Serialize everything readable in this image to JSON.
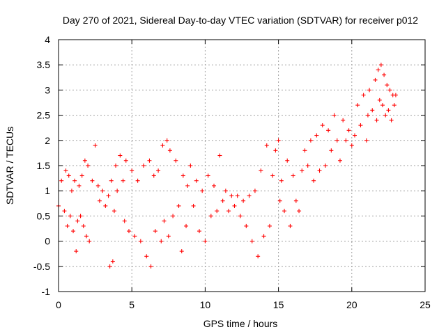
{
  "chart_data": {
    "type": "scatter",
    "title": "Day 270 of 2021, Sidereal Day-to-day VTEC variation (SDTVAR) for receiver p012",
    "xlabel": "GPS time / hours",
    "ylabel": "SDTVAR / TECUs",
    "xlim": [
      0,
      25
    ],
    "ylim": [
      -1,
      4
    ],
    "grid": true,
    "marker": "plus",
    "x_ticks": [
      "0",
      "5",
      "10",
      "15",
      "20",
      "25"
    ],
    "y_ticks": [
      "-1",
      "-0.5",
      "0",
      "0.5",
      "1",
      "1.5",
      "2",
      "2.5",
      "3",
      "3.5",
      "4"
    ],
    "series": [
      {
        "name": "p012",
        "color": "#ff0000",
        "points": [
          [
            0.0,
            0.7
          ],
          [
            0.2,
            1.2
          ],
          [
            0.4,
            0.6
          ],
          [
            0.5,
            1.4
          ],
          [
            0.6,
            0.3
          ],
          [
            0.7,
            1.3
          ],
          [
            0.8,
            0.5
          ],
          [
            0.9,
            1.0
          ],
          [
            1.0,
            0.2
          ],
          [
            1.1,
            1.2
          ],
          [
            1.2,
            -0.2
          ],
          [
            1.3,
            0.4
          ],
          [
            1.4,
            1.1
          ],
          [
            1.5,
            0.5
          ],
          [
            1.6,
            1.3
          ],
          [
            1.7,
            0.3
          ],
          [
            1.8,
            1.6
          ],
          [
            1.9,
            0.1
          ],
          [
            2.0,
            1.5
          ],
          [
            2.1,
            0.0
          ],
          [
            2.3,
            1.2
          ],
          [
            2.5,
            1.9
          ],
          [
            2.7,
            1.1
          ],
          [
            2.8,
            0.8
          ],
          [
            3.0,
            1.0
          ],
          [
            3.2,
            0.7
          ],
          [
            3.4,
            0.9
          ],
          [
            3.5,
            -0.5
          ],
          [
            3.6,
            1.2
          ],
          [
            3.7,
            -0.4
          ],
          [
            3.8,
            0.6
          ],
          [
            3.9,
            1.5
          ],
          [
            4.0,
            1.0
          ],
          [
            4.2,
            1.7
          ],
          [
            4.4,
            1.2
          ],
          [
            4.5,
            0.4
          ],
          [
            4.6,
            1.6
          ],
          [
            4.8,
            0.2
          ],
          [
            5.0,
            1.4
          ],
          [
            5.2,
            0.1
          ],
          [
            5.4,
            1.2
          ],
          [
            5.6,
            0.0
          ],
          [
            5.8,
            1.5
          ],
          [
            6.0,
            -0.3
          ],
          [
            6.2,
            1.6
          ],
          [
            6.3,
            -0.5
          ],
          [
            6.5,
            1.3
          ],
          [
            6.6,
            0.2
          ],
          [
            6.8,
            1.4
          ],
          [
            7.0,
            0.0
          ],
          [
            7.1,
            1.9
          ],
          [
            7.2,
            0.4
          ],
          [
            7.4,
            2.0
          ],
          [
            7.5,
            0.1
          ],
          [
            7.6,
            1.8
          ],
          [
            7.8,
            0.5
          ],
          [
            8.0,
            1.6
          ],
          [
            8.2,
            0.7
          ],
          [
            8.4,
            -0.2
          ],
          [
            8.5,
            1.3
          ],
          [
            8.7,
            0.3
          ],
          [
            8.8,
            1.1
          ],
          [
            9.0,
            1.5
          ],
          [
            9.2,
            0.7
          ],
          [
            9.4,
            1.2
          ],
          [
            9.6,
            0.2
          ],
          [
            9.8,
            1.0
          ],
          [
            10.0,
            0.0
          ],
          [
            10.2,
            1.3
          ],
          [
            10.4,
            0.5
          ],
          [
            10.6,
            1.1
          ],
          [
            10.8,
            0.6
          ],
          [
            11.0,
            1.7
          ],
          [
            11.2,
            0.8
          ],
          [
            11.4,
            1.0
          ],
          [
            11.6,
            0.6
          ],
          [
            11.8,
            0.9
          ],
          [
            12.0,
            0.7
          ],
          [
            12.2,
            0.9
          ],
          [
            12.4,
            0.5
          ],
          [
            12.6,
            0.8
          ],
          [
            12.8,
            0.3
          ],
          [
            13.0,
            0.9
          ],
          [
            13.2,
            0.0
          ],
          [
            13.4,
            1.0
          ],
          [
            13.6,
            -0.3
          ],
          [
            13.8,
            1.4
          ],
          [
            14.0,
            0.1
          ],
          [
            14.2,
            1.9
          ],
          [
            14.4,
            0.3
          ],
          [
            14.6,
            1.3
          ],
          [
            14.8,
            1.8
          ],
          [
            15.0,
            2.0
          ],
          [
            15.1,
            0.8
          ],
          [
            15.2,
            1.2
          ],
          [
            15.4,
            0.6
          ],
          [
            15.6,
            1.6
          ],
          [
            15.8,
            0.3
          ],
          [
            16.0,
            1.3
          ],
          [
            16.2,
            0.8
          ],
          [
            16.4,
            0.6
          ],
          [
            16.6,
            1.4
          ],
          [
            16.8,
            1.8
          ],
          [
            17.0,
            1.5
          ],
          [
            17.2,
            2.0
          ],
          [
            17.4,
            1.2
          ],
          [
            17.6,
            2.1
          ],
          [
            17.8,
            1.4
          ],
          [
            18.0,
            2.3
          ],
          [
            18.2,
            1.5
          ],
          [
            18.4,
            2.2
          ],
          [
            18.6,
            1.8
          ],
          [
            18.8,
            2.5
          ],
          [
            19.0,
            2.0
          ],
          [
            19.2,
            1.6
          ],
          [
            19.4,
            2.4
          ],
          [
            19.6,
            2.0
          ],
          [
            19.8,
            2.2
          ],
          [
            20.0,
            1.9
          ],
          [
            20.2,
            2.1
          ],
          [
            20.4,
            2.7
          ],
          [
            20.6,
            2.3
          ],
          [
            20.8,
            2.9
          ],
          [
            21.0,
            2.0
          ],
          [
            21.1,
            2.5
          ],
          [
            21.2,
            3.0
          ],
          [
            21.4,
            2.6
          ],
          [
            21.6,
            3.2
          ],
          [
            21.7,
            2.4
          ],
          [
            21.8,
            3.4
          ],
          [
            21.9,
            2.8
          ],
          [
            22.0,
            3.5
          ],
          [
            22.1,
            2.7
          ],
          [
            22.2,
            3.3
          ],
          [
            22.3,
            2.5
          ],
          [
            22.4,
            3.1
          ],
          [
            22.5,
            2.6
          ],
          [
            22.6,
            3.0
          ],
          [
            22.7,
            2.4
          ],
          [
            22.8,
            2.9
          ],
          [
            22.9,
            2.7
          ],
          [
            23.0,
            2.9
          ]
        ]
      }
    ]
  }
}
